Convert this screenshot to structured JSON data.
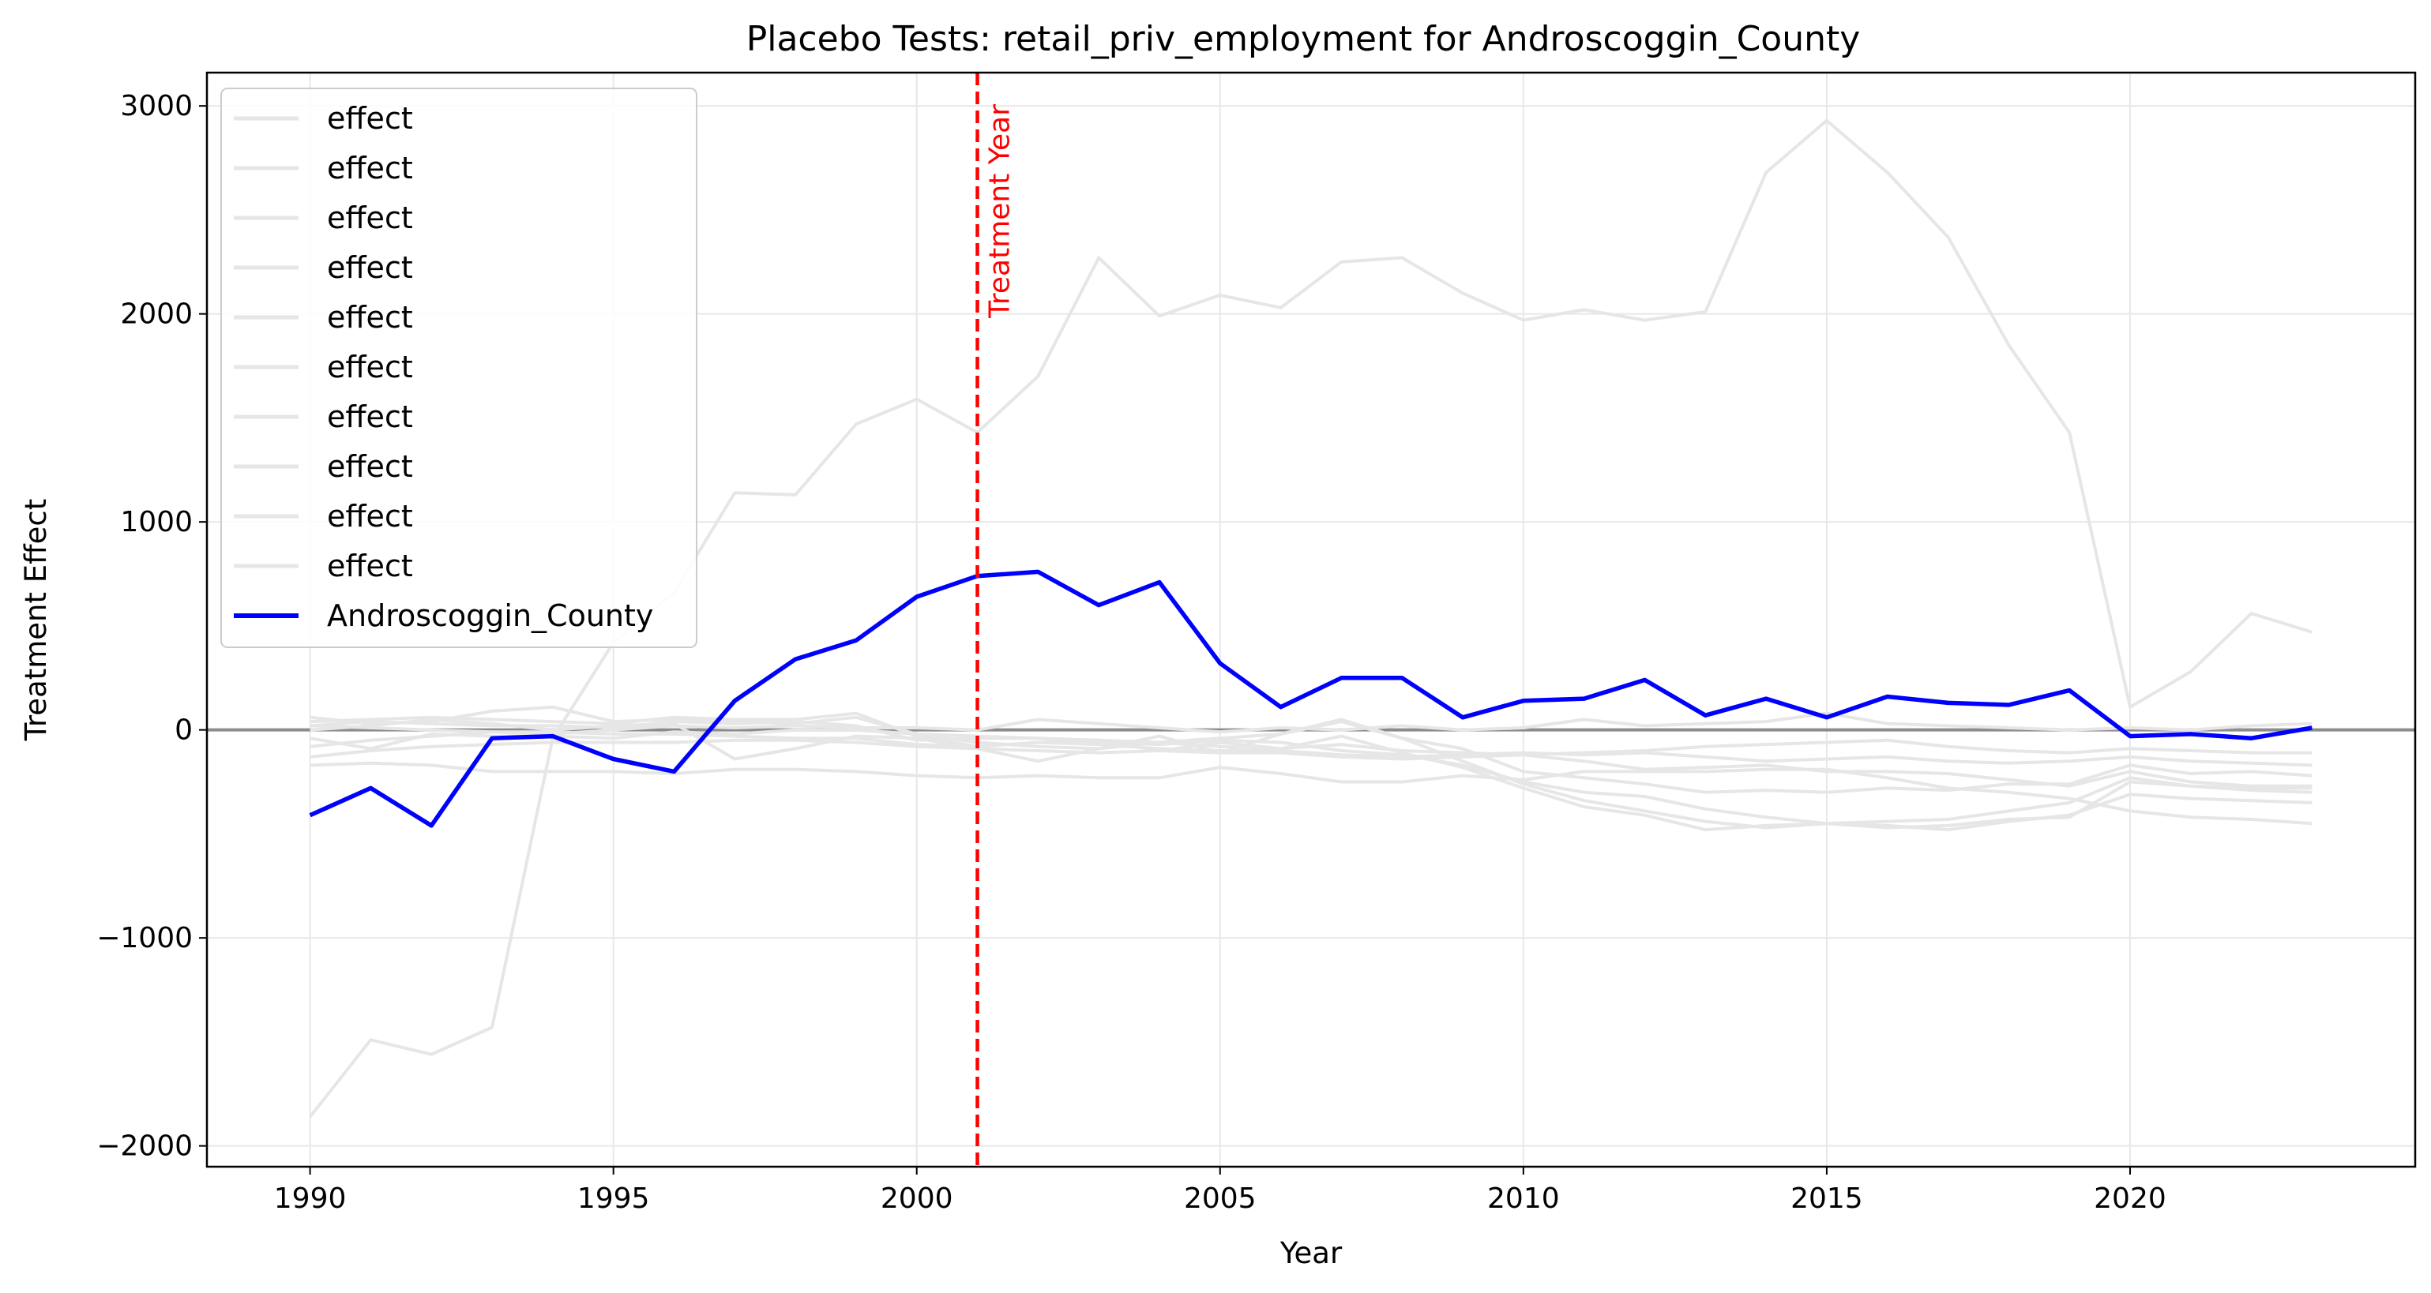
{
  "chart_data": {
    "type": "line",
    "title": "Placebo Tests: retail_priv_employment for Androscoggin_County",
    "xlabel": "Year",
    "ylabel": "Treatment Effect",
    "xlim": [
      1988.3,
      2024.7
    ],
    "ylim": [
      -2100,
      3160
    ],
    "xticks": [
      1990,
      1995,
      2000,
      2005,
      2010,
      2015,
      2020
    ],
    "yticks": [
      -2000,
      -1000,
      0,
      1000,
      2000,
      3000
    ],
    "ytick_labels": [
      "−2000",
      "−1000",
      "0",
      "1000",
      "2000",
      "3000"
    ],
    "grid": true,
    "legend_position": "upper-left",
    "zero_line": 0,
    "treatment": {
      "year": 2001,
      "label": "Treatment Year",
      "color": "#ff0000"
    },
    "x": [
      1990,
      1991,
      1992,
      1993,
      1994,
      1995,
      1996,
      1997,
      1998,
      1999,
      2000,
      2001,
      2002,
      2003,
      2004,
      2005,
      2006,
      2007,
      2008,
      2009,
      2010,
      2011,
      2012,
      2013,
      2014,
      2015,
      2016,
      2017,
      2018,
      2019,
      2020,
      2021,
      2022,
      2023
    ],
    "placebo_color": "#e6e6e6",
    "treated_color": "#0000ff",
    "placebos": [
      {
        "name": "effect",
        "values": [
          -1860,
          -1490,
          -1560,
          -1430,
          -40,
          420,
          660,
          1140,
          1130,
          1470,
          1590,
          1430,
          1700,
          2270,
          1990,
          2090,
          2030,
          2250,
          2270,
          2100,
          1970,
          2020,
          1970,
          2010,
          2680,
          2930,
          2680,
          2370,
          1850,
          1430,
          110,
          280,
          560,
          470
        ]
      },
      {
        "name": "effect",
        "values": [
          60,
          30,
          40,
          90,
          110,
          40,
          50,
          40,
          30,
          60,
          -20,
          -60,
          -80,
          -90,
          -60,
          -40,
          -20,
          40,
          -40,
          -150,
          -260,
          -340,
          -390,
          -440,
          -470,
          -450,
          -440,
          -430,
          -390,
          -350,
          -230,
          -270,
          -280,
          -280
        ]
      },
      {
        "name": "effect",
        "values": [
          40,
          50,
          60,
          50,
          40,
          30,
          60,
          50,
          50,
          80,
          -30,
          -80,
          -60,
          -50,
          -100,
          -60,
          -90,
          -30,
          -110,
          -180,
          -280,
          -370,
          -410,
          -480,
          -460,
          -450,
          -460,
          -480,
          -440,
          -410,
          -310,
          -330,
          -340,
          -350
        ]
      },
      {
        "name": "effect",
        "values": [
          20,
          40,
          30,
          20,
          20,
          10,
          40,
          30,
          40,
          20,
          -50,
          -40,
          -40,
          -60,
          -70,
          -50,
          -60,
          -100,
          -120,
          -170,
          -250,
          -300,
          -320,
          -380,
          -420,
          -450,
          -470,
          -460,
          -430,
          -420,
          -250,
          -270,
          -290,
          -300
        ]
      },
      {
        "name": "effect",
        "values": [
          0,
          20,
          50,
          30,
          0,
          20,
          30,
          -140,
          -90,
          -30,
          -40,
          -90,
          -150,
          -90,
          -30,
          -110,
          -20,
          50,
          -40,
          -90,
          -200,
          -230,
          -260,
          -300,
          -290,
          -300,
          -280,
          -290,
          -260,
          -260,
          -170,
          -210,
          -200,
          -220
        ]
      },
      {
        "name": "effect",
        "values": [
          -40,
          -90,
          -20,
          -30,
          -30,
          -40,
          -10,
          -20,
          0,
          0,
          -20,
          -30,
          -40,
          -50,
          -60,
          -80,
          -90,
          -70,
          -100,
          -110,
          -120,
          -150,
          -190,
          -180,
          -170,
          -200,
          -200,
          -210,
          -240,
          -270,
          -200,
          -250,
          -270,
          -270
        ]
      },
      {
        "name": "effect",
        "values": [
          -80,
          -50,
          -30,
          -10,
          -10,
          -20,
          -20,
          -30,
          -40,
          -40,
          -70,
          -80,
          -60,
          -70,
          -90,
          -100,
          -100,
          -120,
          -130,
          -120,
          -110,
          -120,
          -110,
          -130,
          -150,
          -140,
          -130,
          -150,
          -160,
          -150,
          -130,
          -150,
          -160,
          -170
        ]
      },
      {
        "name": "effect",
        "values": [
          -130,
          -100,
          -80,
          -70,
          -60,
          -60,
          -60,
          -50,
          -50,
          -60,
          -80,
          -90,
          -100,
          -110,
          -100,
          -110,
          -110,
          -130,
          -140,
          -130,
          -120,
          -110,
          -100,
          -80,
          -70,
          -60,
          -50,
          -80,
          -100,
          -110,
          -90,
          -100,
          -110,
          -110
        ]
      },
      {
        "name": "effect",
        "values": [
          -170,
          -160,
          -170,
          -200,
          -200,
          -200,
          -210,
          -190,
          -190,
          -200,
          -220,
          -230,
          -220,
          -230,
          -230,
          -180,
          -210,
          -250,
          -250,
          -220,
          -240,
          -200,
          -200,
          -200,
          -190,
          -190,
          -230,
          -280,
          -300,
          -330,
          -390,
          -420,
          -430,
          -450
        ]
      },
      {
        "name": "effect",
        "values": [
          20,
          10,
          0,
          -10,
          -20,
          0,
          20,
          10,
          20,
          10,
          10,
          0,
          50,
          30,
          10,
          -10,
          10,
          0,
          20,
          0,
          10,
          50,
          20,
          30,
          40,
          80,
          30,
          20,
          10,
          0,
          10,
          0,
          20,
          30
        ]
      }
    ],
    "treated": {
      "name": "Androscoggin_County",
      "values": [
        -410,
        -280,
        -460,
        -40,
        -30,
        -140,
        -200,
        140,
        340,
        430,
        640,
        740,
        760,
        600,
        710,
        320,
        110,
        250,
        250,
        60,
        140,
        150,
        240,
        70,
        150,
        60,
        160,
        130,
        120,
        190,
        -30,
        -20,
        -40,
        10
      ]
    }
  }
}
